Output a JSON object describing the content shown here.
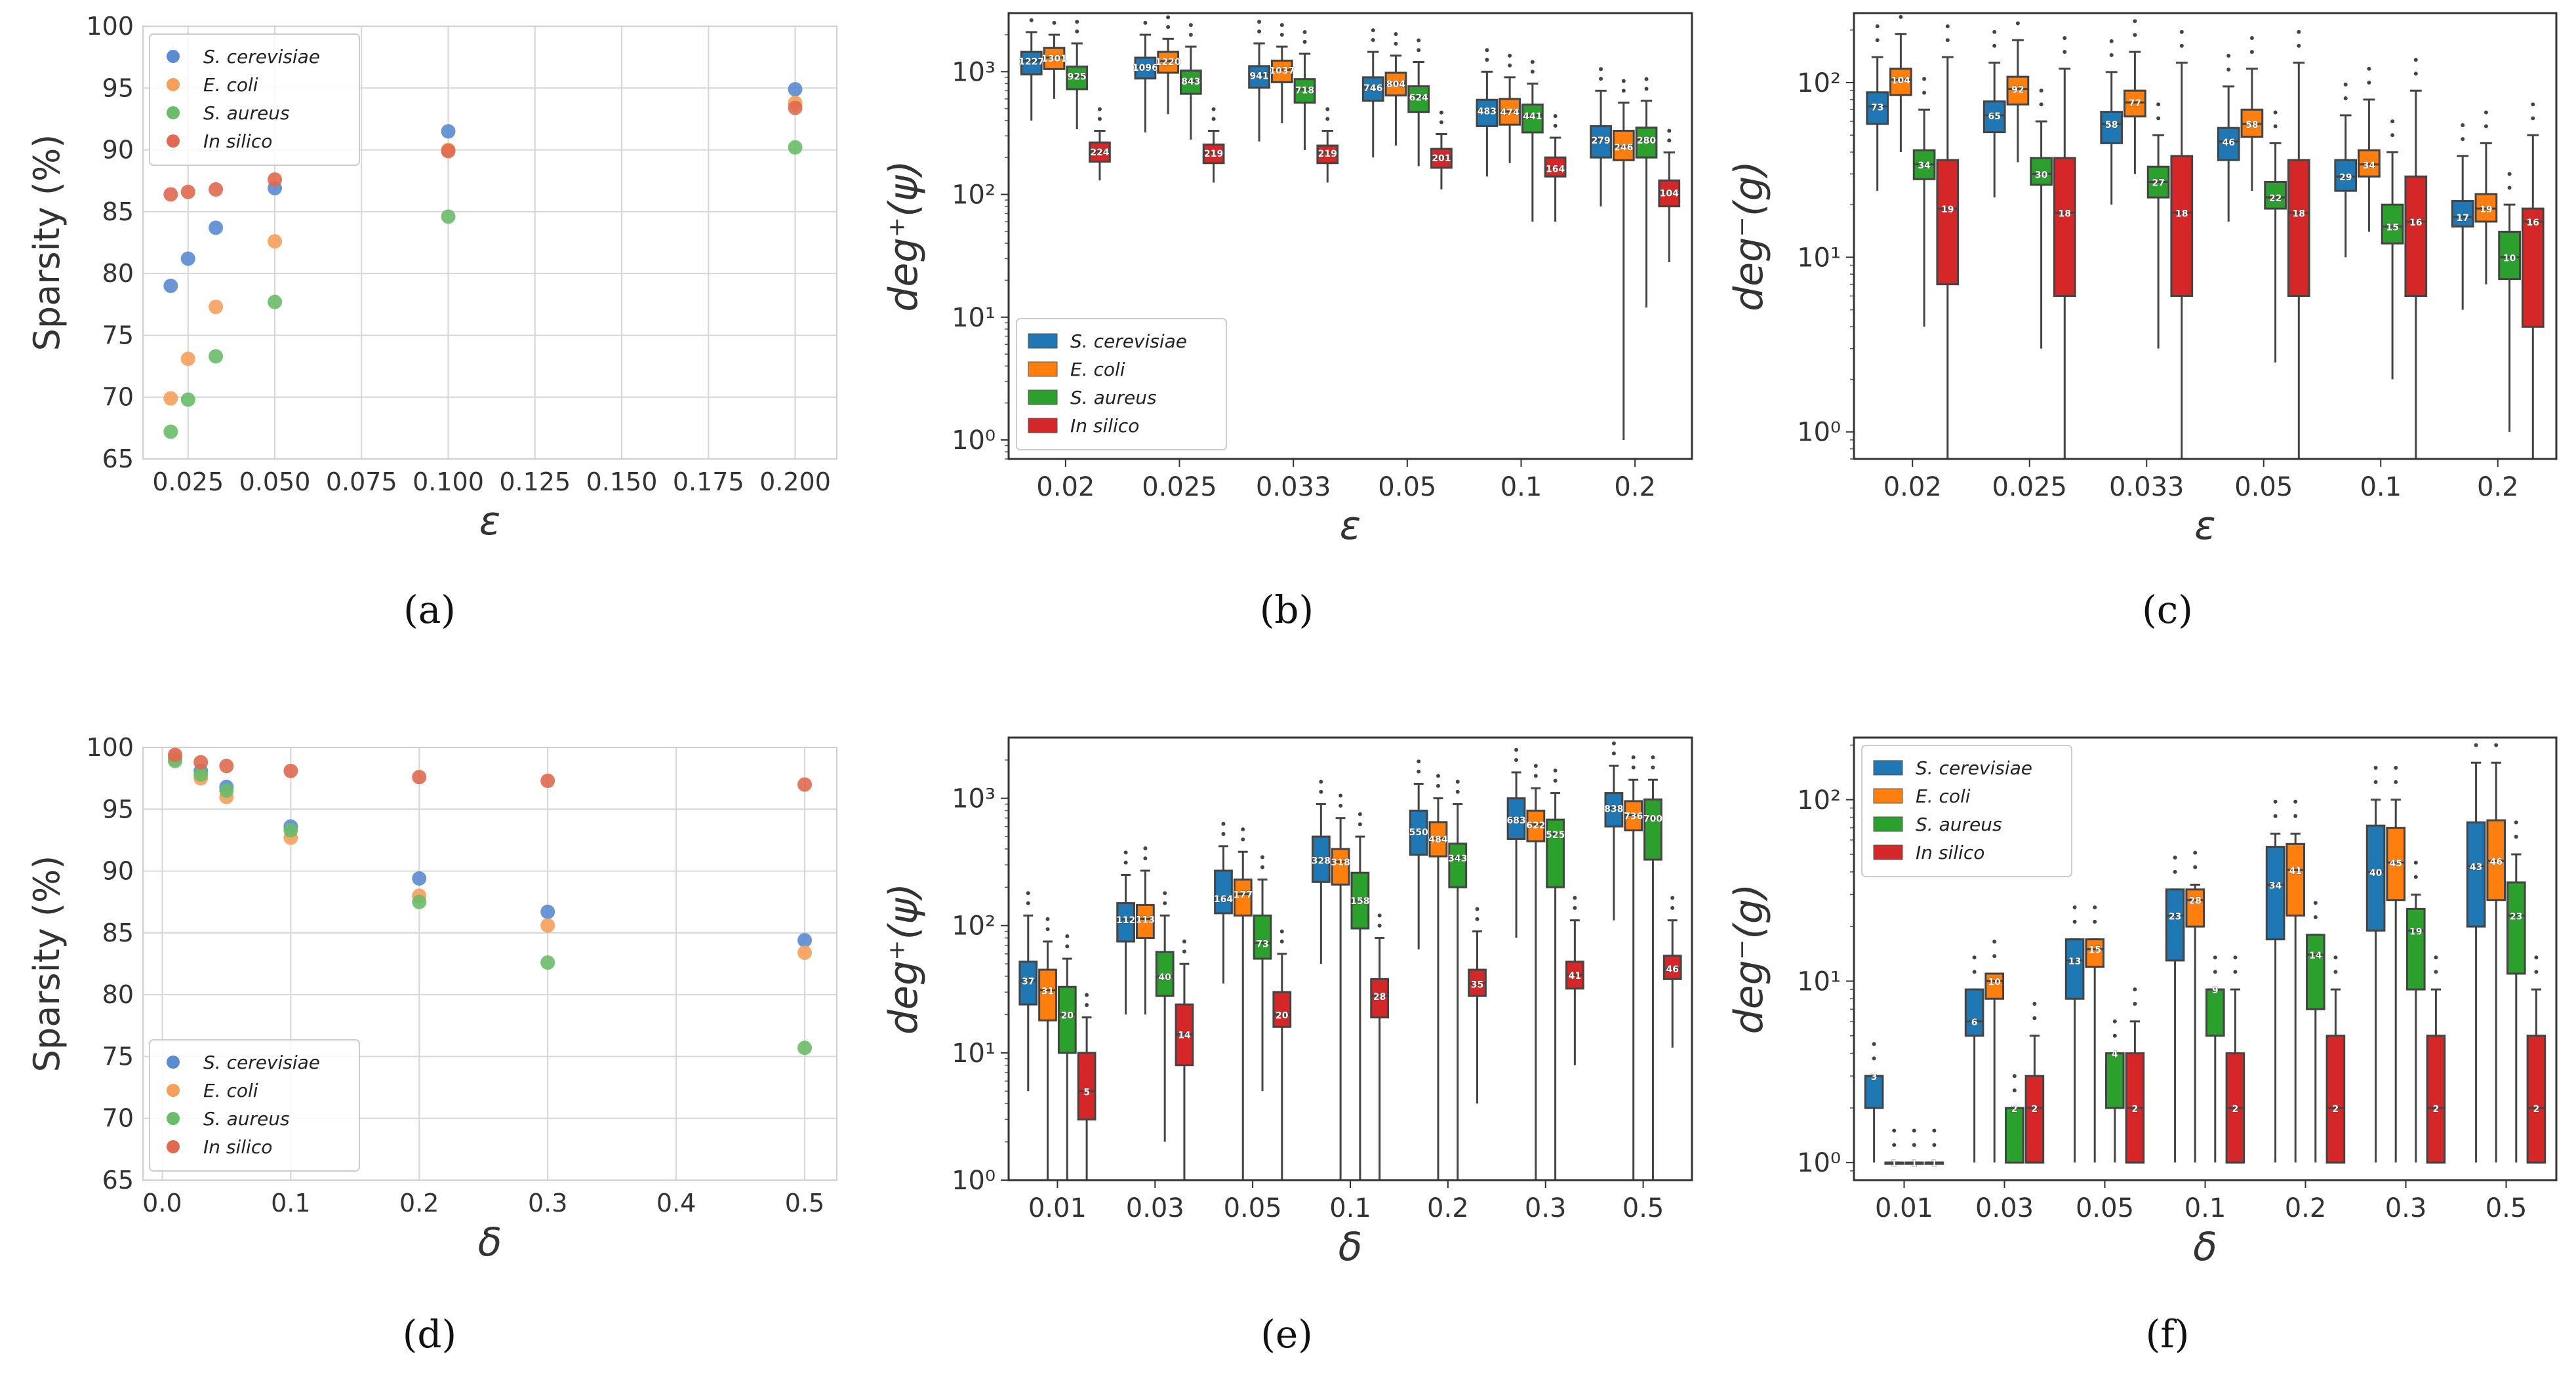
{
  "colors": {
    "S. cerevisiae": "#1f77b4",
    "E. coli": "#ff7f0e",
    "S. aureus": "#2ca02c",
    "In silico": "#d62728",
    "scatter_cerevisiae": "#5b8bd0",
    "scatter_coli": "#f5a05a",
    "scatter_aureus": "#69bd69",
    "scatter_insilico": "#e0694f"
  },
  "legend_labels": [
    "S. cerevisiae",
    "E. coli",
    "S. aureus",
    "In silico"
  ],
  "chart_data": [
    {
      "id": "a",
      "type": "scatter",
      "caption": "(a)",
      "xlabel": "ε",
      "ylabel": "Sparsity (%)",
      "xlim": [
        0.012,
        0.212
      ],
      "ylim": [
        65,
        100
      ],
      "xticks": [
        "0.025",
        "0.050",
        "0.075",
        "0.100",
        "0.125",
        "0.150",
        "0.175",
        "0.200"
      ],
      "yticks": [
        "65",
        "70",
        "75",
        "80",
        "85",
        "90",
        "95",
        "100"
      ],
      "legend": "top-left",
      "x": [
        0.02,
        0.025,
        0.033,
        0.05,
        0.1,
        0.2
      ],
      "series": [
        {
          "name": "S. cerevisiae",
          "values": [
            79.0,
            81.2,
            83.7,
            86.9,
            91.5,
            94.9
          ]
        },
        {
          "name": "E. coli",
          "values": [
            69.9,
            73.1,
            77.3,
            82.6,
            90.0,
            93.8
          ]
        },
        {
          "name": "S. aureus",
          "values": [
            67.2,
            69.8,
            73.3,
            77.7,
            84.6,
            90.2
          ]
        },
        {
          "name": "In silico",
          "values": [
            86.4,
            86.6,
            86.8,
            87.6,
            89.9,
            93.4
          ]
        }
      ]
    },
    {
      "id": "b",
      "type": "box",
      "caption": "(b)",
      "xlabel": "ε",
      "ylabel": "deg⁺(ψ)",
      "yscale": "log",
      "ylim": [
        0.7,
        3000
      ],
      "yticks": [
        "10⁰",
        "10¹",
        "10²",
        "10³"
      ],
      "categories": [
        "0.02",
        "0.025",
        "0.033",
        "0.05",
        "0.1",
        "0.2"
      ],
      "legend": "bottom-left",
      "series": [
        {
          "name": "S. cerevisiae",
          "medians": [
            1227,
            1096,
            941,
            746,
            483,
            279
          ],
          "q1": [
            950,
            880,
            740,
            580,
            360,
            200
          ],
          "q3": [
            1450,
            1300,
            1110,
            900,
            590,
            360
          ],
          "whislo": [
            400,
            320,
            270,
            200,
            140,
            80
          ],
          "whishi": [
            2100,
            2000,
            1700,
            1450,
            1000,
            700
          ]
        },
        {
          "name": "E. coli",
          "medians": [
            1301,
            1220,
            1037,
            804,
            474,
            246
          ],
          "q1": [
            1050,
            980,
            820,
            640,
            370,
            190
          ],
          "q3": [
            1560,
            1450,
            1230,
            980,
            600,
            330
          ],
          "whislo": [
            600,
            450,
            380,
            250,
            180,
            1
          ],
          "whishi": [
            2000,
            1850,
            1600,
            1350,
            900,
            560
          ]
        },
        {
          "name": "S. aureus",
          "medians": [
            925,
            843,
            718,
            624,
            441,
            280
          ],
          "q1": [
            720,
            660,
            560,
            470,
            320,
            200
          ],
          "q3": [
            1100,
            1020,
            870,
            760,
            540,
            350
          ],
          "whislo": [
            340,
            280,
            230,
            170,
            60,
            12
          ],
          "whishi": [
            1700,
            1600,
            1400,
            1200,
            800,
            580
          ]
        },
        {
          "name": "In silico",
          "medians": [
            224,
            219,
            219,
            201,
            164,
            104
          ],
          "q1": [
            185,
            180,
            180,
            165,
            140,
            80
          ],
          "q3": [
            265,
            255,
            250,
            235,
            200,
            130
          ],
          "whislo": [
            130,
            125,
            125,
            110,
            60,
            28
          ],
          "whishi": [
            330,
            330,
            330,
            310,
            290,
            220
          ]
        }
      ]
    },
    {
      "id": "c",
      "type": "box",
      "caption": "(c)",
      "xlabel": "ε",
      "ylabel": "deg⁻(g)",
      "yscale": "log",
      "ylim": [
        0.7,
        250
      ],
      "yticks": [
        "10⁰",
        "10¹",
        "10²"
      ],
      "categories": [
        "0.02",
        "0.025",
        "0.033",
        "0.05",
        "0.1",
        "0.2"
      ],
      "legend": "none",
      "series": [
        {
          "name": "S. cerevisiae",
          "medians": [
            73,
            65,
            58,
            46,
            29,
            17
          ],
          "q1": [
            58,
            52,
            45,
            36,
            24,
            15
          ],
          "q3": [
            88,
            78,
            68,
            55,
            36,
            21
          ],
          "whislo": [
            24,
            22,
            20,
            16,
            10,
            5
          ],
          "whishi": [
            140,
            130,
            115,
            95,
            65,
            38
          ]
        },
        {
          "name": "E. coli",
          "medians": [
            104,
            92,
            77,
            58,
            34,
            19
          ],
          "q1": [
            85,
            75,
            64,
            49,
            29,
            16
          ],
          "q3": [
            120,
            108,
            90,
            70,
            41,
            23
          ],
          "whislo": [
            40,
            35,
            30,
            24,
            14,
            7
          ],
          "whishi": [
            190,
            175,
            150,
            120,
            80,
            45
          ]
        },
        {
          "name": "S. aureus",
          "medians": [
            34,
            30,
            27,
            22,
            15,
            10
          ],
          "q1": [
            28,
            26,
            22,
            19,
            12,
            7.5
          ],
          "q3": [
            41,
            37,
            33,
            27,
            20,
            14
          ],
          "whislo": [
            4,
            3,
            3,
            2.5,
            2,
            1
          ],
          "whishi": [
            70,
            60,
            50,
            45,
            40,
            20
          ]
        },
        {
          "name": "In silico",
          "medians": [
            19,
            18,
            18,
            18,
            16,
            16
          ],
          "q1": [
            7,
            6,
            6,
            6,
            6,
            4
          ],
          "q3": [
            36,
            37,
            38,
            36,
            29,
            19
          ],
          "whislo": [
            0.5,
            0.5,
            0.5,
            0.5,
            0.5,
            0.5
          ],
          "whishi": [
            140,
            120,
            130,
            130,
            90,
            50
          ]
        }
      ]
    },
    {
      "id": "d",
      "type": "scatter",
      "caption": "(d)",
      "xlabel": "δ",
      "ylabel": "Sparsity (%)",
      "xlim": [
        -0.015,
        0.525
      ],
      "ylim": [
        65,
        100
      ],
      "xticks": [
        "0.0",
        "0.1",
        "0.2",
        "0.3",
        "0.4",
        "0.5"
      ],
      "yticks": [
        "65",
        "70",
        "75",
        "80",
        "85",
        "90",
        "95",
        "100"
      ],
      "legend": "bottom-left",
      "x": [
        0.01,
        0.03,
        0.05,
        0.1,
        0.2,
        0.3,
        0.5
      ],
      "series": [
        {
          "name": "S. cerevisiae",
          "values": [
            99.1,
            98.1,
            96.8,
            93.6,
            89.4,
            86.7,
            84.4
          ]
        },
        {
          "name": "E. coli",
          "values": [
            99.2,
            97.5,
            96.0,
            92.7,
            88.0,
            85.6,
            83.4
          ]
        },
        {
          "name": "S. aureus",
          "values": [
            98.9,
            97.8,
            96.5,
            93.3,
            87.5,
            82.6,
            75.7
          ]
        },
        {
          "name": "In silico",
          "values": [
            99.4,
            98.8,
            98.5,
            98.1,
            97.6,
            97.3,
            97.0
          ]
        }
      ]
    },
    {
      "id": "e",
      "type": "box",
      "caption": "(e)",
      "xlabel": "δ",
      "ylabel": "deg⁺(ψ)",
      "yscale": "log",
      "ylim": [
        1,
        3000
      ],
      "yticks": [
        "10⁰",
        "10¹",
        "10²",
        "10³"
      ],
      "categories": [
        "0.01",
        "0.03",
        "0.05",
        "0.1",
        "0.2",
        "0.3",
        "0.5"
      ],
      "legend": "none",
      "series": [
        {
          "name": "S. cerevisiae",
          "medians": [
            37,
            112,
            164,
            328,
            550,
            683,
            838
          ],
          "q1": [
            24,
            75,
            125,
            220,
            360,
            480,
            600
          ],
          "q3": [
            52,
            150,
            270,
            500,
            800,
            1000,
            1100
          ],
          "whislo": [
            5,
            20,
            35,
            50,
            65,
            80,
            110
          ],
          "whishi": [
            120,
            250,
            420,
            900,
            1300,
            1600,
            1800
          ]
        },
        {
          "name": "E. coli",
          "medians": [
            31,
            113,
            177,
            318,
            484,
            622,
            736
          ],
          "q1": [
            18,
            80,
            120,
            210,
            350,
            460,
            560
          ],
          "q3": [
            45,
            145,
            230,
            400,
            650,
            800,
            950
          ],
          "whislo": [
            1,
            20,
            1,
            1,
            1,
            1,
            1
          ],
          "whishi": [
            75,
            270,
            380,
            700,
            1000,
            1200,
            1400
          ]
        },
        {
          "name": "S. aureus",
          "medians": [
            20,
            40,
            73,
            158,
            343,
            525,
            700
          ],
          "q1": [
            10,
            28,
            55,
            95,
            200,
            200,
            330
          ],
          "q3": [
            33,
            62,
            120,
            260,
            440,
            680,
            980
          ],
          "whislo": [
            1,
            2,
            5,
            1,
            1,
            1,
            1
          ],
          "whishi": [
            55,
            120,
            230,
            500,
            900,
            1100,
            1400
          ]
        },
        {
          "name": "In silico",
          "medians": [
            5,
            14,
            20,
            28,
            35,
            41,
            46
          ],
          "q1": [
            3,
            8,
            16,
            19,
            28,
            32,
            38
          ],
          "q3": [
            10,
            24,
            30,
            38,
            45,
            52,
            58
          ],
          "whislo": [
            1,
            1,
            1,
            1,
            4,
            8,
            11
          ],
          "whishi": [
            19,
            50,
            60,
            80,
            90,
            110,
            110
          ]
        }
      ]
    },
    {
      "id": "f",
      "type": "box",
      "caption": "(f)",
      "xlabel": "δ",
      "ylabel": "deg⁻(g)",
      "yscale": "log",
      "ylim": [
        0.8,
        220
      ],
      "yticks": [
        "10⁰",
        "10¹",
        "10²"
      ],
      "categories": [
        "0.01",
        "0.03",
        "0.05",
        "0.1",
        "0.2",
        "0.3",
        "0.5"
      ],
      "legend": "top-left",
      "series": [
        {
          "name": "S. cerevisiae",
          "medians": [
            3,
            6,
            13,
            23,
            34,
            40,
            43
          ],
          "q1": [
            2,
            5,
            8,
            13,
            17,
            19,
            20
          ],
          "q3": [
            3,
            9,
            17,
            32,
            55,
            72,
            75
          ],
          "whislo": [
            1,
            1,
            1,
            1,
            1,
            1,
            1
          ],
          "whishi": [
            3,
            9,
            17,
            32,
            65,
            100,
            160
          ]
        },
        {
          "name": "E. coli",
          "medians": [
            1,
            10,
            15,
            28,
            41,
            45,
            46
          ],
          "q1": [
            1,
            8,
            12,
            20,
            23,
            28,
            28
          ],
          "q3": [
            1,
            11,
            17,
            32,
            57,
            70,
            77
          ],
          "whislo": [
            1,
            1,
            1,
            1,
            1,
            1,
            1
          ],
          "whishi": [
            1,
            11,
            17,
            34,
            65,
            100,
            160
          ]
        },
        {
          "name": "S. aureus",
          "medians": [
            1,
            2,
            4,
            9,
            14,
            19,
            23
          ],
          "q1": [
            1,
            1,
            2,
            5,
            7,
            9,
            11
          ],
          "q3": [
            1,
            2,
            4,
            9,
            18,
            25,
            35
          ],
          "whislo": [
            1,
            1,
            1,
            1,
            1,
            1,
            1
          ],
          "whishi": [
            1,
            2,
            4,
            9,
            18,
            30,
            50
          ]
        },
        {
          "name": "In silico",
          "medians": [
            1,
            2,
            2,
            2,
            2,
            2,
            2
          ],
          "q1": [
            1,
            1,
            1,
            1,
            1,
            1,
            1
          ],
          "q3": [
            1,
            3,
            4,
            4,
            5,
            5,
            5
          ],
          "whislo": [
            1,
            1,
            1,
            1,
            1,
            1,
            1
          ],
          "whishi": [
            1,
            5,
            6,
            9,
            9,
            9,
            9
          ]
        }
      ]
    }
  ]
}
